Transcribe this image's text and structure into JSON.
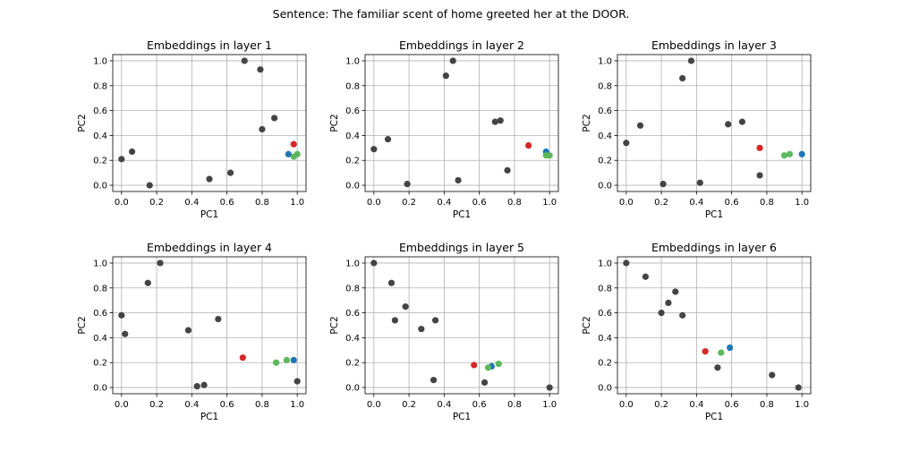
{
  "suptitle": "Sentence: The familiar scent of home greeted her at the DOOR.",
  "colors": {
    "gray": "#444444",
    "red": "#d62728",
    "blue": "#1f77b4",
    "green": "#5cb85c"
  },
  "chart_data": [
    {
      "type": "scatter",
      "title": "Embeddings in layer 1",
      "xlabel": "PC1",
      "ylabel": "PC2",
      "xlim": [
        -0.05,
        1.05
      ],
      "ylim": [
        -0.05,
        1.05
      ],
      "xticks": [
        "0.0",
        "0.2",
        "0.4",
        "0.6",
        "0.8",
        "1.0"
      ],
      "yticks": [
        "0.0",
        "0.2",
        "0.4",
        "0.6",
        "0.8",
        "1.0"
      ],
      "grid": true,
      "points": [
        {
          "x": 0.0,
          "y": 0.21,
          "color": "gray"
        },
        {
          "x": 0.06,
          "y": 0.27,
          "color": "gray"
        },
        {
          "x": 0.16,
          "y": 0.0,
          "color": "gray"
        },
        {
          "x": 0.5,
          "y": 0.05,
          "color": "gray"
        },
        {
          "x": 0.62,
          "y": 0.1,
          "color": "gray"
        },
        {
          "x": 0.7,
          "y": 1.0,
          "color": "gray"
        },
        {
          "x": 0.79,
          "y": 0.93,
          "color": "gray"
        },
        {
          "x": 0.8,
          "y": 0.45,
          "color": "gray"
        },
        {
          "x": 0.87,
          "y": 0.54,
          "color": "gray"
        },
        {
          "x": 0.98,
          "y": 0.33,
          "color": "red"
        },
        {
          "x": 0.95,
          "y": 0.25,
          "color": "blue"
        },
        {
          "x": 0.98,
          "y": 0.23,
          "color": "green"
        },
        {
          "x": 1.0,
          "y": 0.25,
          "color": "green"
        }
      ]
    },
    {
      "type": "scatter",
      "title": "Embeddings in layer 2",
      "xlabel": "PC1",
      "ylabel": "PC2",
      "xlim": [
        -0.05,
        1.05
      ],
      "ylim": [
        -0.05,
        1.05
      ],
      "xticks": [
        "0.0",
        "0.2",
        "0.4",
        "0.6",
        "0.8",
        "1.0"
      ],
      "yticks": [
        "0.0",
        "0.2",
        "0.4",
        "0.6",
        "0.8",
        "1.0"
      ],
      "grid": true,
      "points": [
        {
          "x": 0.0,
          "y": 0.29,
          "color": "gray"
        },
        {
          "x": 0.08,
          "y": 0.37,
          "color": "gray"
        },
        {
          "x": 0.19,
          "y": 0.01,
          "color": "gray"
        },
        {
          "x": 0.41,
          "y": 0.88,
          "color": "gray"
        },
        {
          "x": 0.45,
          "y": 1.0,
          "color": "gray"
        },
        {
          "x": 0.48,
          "y": 0.04,
          "color": "gray"
        },
        {
          "x": 0.69,
          "y": 0.51,
          "color": "gray"
        },
        {
          "x": 0.72,
          "y": 0.52,
          "color": "gray"
        },
        {
          "x": 0.76,
          "y": 0.12,
          "color": "gray"
        },
        {
          "x": 0.88,
          "y": 0.32,
          "color": "red"
        },
        {
          "x": 0.98,
          "y": 0.27,
          "color": "blue"
        },
        {
          "x": 0.98,
          "y": 0.24,
          "color": "green"
        },
        {
          "x": 1.0,
          "y": 0.24,
          "color": "green"
        }
      ]
    },
    {
      "type": "scatter",
      "title": "Embeddings in layer 3",
      "xlabel": "PC1",
      "ylabel": "PC2",
      "xlim": [
        -0.05,
        1.05
      ],
      "ylim": [
        -0.05,
        1.05
      ],
      "xticks": [
        "0.0",
        "0.2",
        "0.4",
        "0.6",
        "0.8",
        "1.0"
      ],
      "yticks": [
        "0.0",
        "0.2",
        "0.4",
        "0.6",
        "0.8",
        "1.0"
      ],
      "grid": true,
      "points": [
        {
          "x": 0.0,
          "y": 0.34,
          "color": "gray"
        },
        {
          "x": 0.08,
          "y": 0.48,
          "color": "gray"
        },
        {
          "x": 0.21,
          "y": 0.01,
          "color": "gray"
        },
        {
          "x": 0.32,
          "y": 0.86,
          "color": "gray"
        },
        {
          "x": 0.37,
          "y": 1.0,
          "color": "gray"
        },
        {
          "x": 0.42,
          "y": 0.02,
          "color": "gray"
        },
        {
          "x": 0.58,
          "y": 0.49,
          "color": "gray"
        },
        {
          "x": 0.66,
          "y": 0.51,
          "color": "gray"
        },
        {
          "x": 0.76,
          "y": 0.08,
          "color": "gray"
        },
        {
          "x": 0.76,
          "y": 0.3,
          "color": "red"
        },
        {
          "x": 1.0,
          "y": 0.25,
          "color": "blue"
        },
        {
          "x": 0.9,
          "y": 0.24,
          "color": "green"
        },
        {
          "x": 0.93,
          "y": 0.25,
          "color": "green"
        }
      ]
    },
    {
      "type": "scatter",
      "title": "Embeddings in layer 4",
      "xlabel": "PC1",
      "ylabel": "PC2",
      "xlim": [
        -0.05,
        1.05
      ],
      "ylim": [
        -0.05,
        1.05
      ],
      "xticks": [
        "0.0",
        "0.2",
        "0.4",
        "0.6",
        "0.8",
        "1.0"
      ],
      "yticks": [
        "0.0",
        "0.2",
        "0.4",
        "0.6",
        "0.8",
        "1.0"
      ],
      "grid": true,
      "points": [
        {
          "x": 0.0,
          "y": 0.58,
          "color": "gray"
        },
        {
          "x": 0.02,
          "y": 0.43,
          "color": "gray"
        },
        {
          "x": 0.15,
          "y": 0.84,
          "color": "gray"
        },
        {
          "x": 0.22,
          "y": 1.0,
          "color": "gray"
        },
        {
          "x": 0.38,
          "y": 0.46,
          "color": "gray"
        },
        {
          "x": 0.43,
          "y": 0.01,
          "color": "gray"
        },
        {
          "x": 0.47,
          "y": 0.02,
          "color": "gray"
        },
        {
          "x": 0.55,
          "y": 0.55,
          "color": "gray"
        },
        {
          "x": 1.0,
          "y": 0.05,
          "color": "gray"
        },
        {
          "x": 0.69,
          "y": 0.24,
          "color": "red"
        },
        {
          "x": 0.98,
          "y": 0.22,
          "color": "blue"
        },
        {
          "x": 0.88,
          "y": 0.2,
          "color": "green"
        },
        {
          "x": 0.94,
          "y": 0.22,
          "color": "green"
        }
      ]
    },
    {
      "type": "scatter",
      "title": "Embeddings in layer 5",
      "xlabel": "PC1",
      "ylabel": "PC2",
      "xlim": [
        -0.05,
        1.05
      ],
      "ylim": [
        -0.05,
        1.05
      ],
      "xticks": [
        "0.0",
        "0.2",
        "0.4",
        "0.6",
        "0.8",
        "1.0"
      ],
      "yticks": [
        "0.0",
        "0.2",
        "0.4",
        "0.6",
        "0.8",
        "1.0"
      ],
      "grid": true,
      "points": [
        {
          "x": 0.0,
          "y": 1.0,
          "color": "gray"
        },
        {
          "x": 0.1,
          "y": 0.84,
          "color": "gray"
        },
        {
          "x": 0.12,
          "y": 0.54,
          "color": "gray"
        },
        {
          "x": 0.18,
          "y": 0.65,
          "color": "gray"
        },
        {
          "x": 0.27,
          "y": 0.47,
          "color": "gray"
        },
        {
          "x": 0.34,
          "y": 0.06,
          "color": "gray"
        },
        {
          "x": 0.35,
          "y": 0.54,
          "color": "gray"
        },
        {
          "x": 0.63,
          "y": 0.04,
          "color": "gray"
        },
        {
          "x": 1.0,
          "y": 0.0,
          "color": "gray"
        },
        {
          "x": 0.57,
          "y": 0.18,
          "color": "red"
        },
        {
          "x": 0.67,
          "y": 0.17,
          "color": "blue"
        },
        {
          "x": 0.65,
          "y": 0.16,
          "color": "green"
        },
        {
          "x": 0.71,
          "y": 0.19,
          "color": "green"
        }
      ]
    },
    {
      "type": "scatter",
      "title": "Embeddings in layer 6",
      "xlabel": "PC1",
      "ylabel": "PC2",
      "xlim": [
        -0.05,
        1.05
      ],
      "ylim": [
        -0.05,
        1.05
      ],
      "xticks": [
        "0.0",
        "0.2",
        "0.4",
        "0.6",
        "0.8",
        "1.0"
      ],
      "yticks": [
        "0.0",
        "0.2",
        "0.4",
        "0.6",
        "0.8",
        "1.0"
      ],
      "grid": true,
      "points": [
        {
          "x": 0.0,
          "y": 1.0,
          "color": "gray"
        },
        {
          "x": 0.11,
          "y": 0.89,
          "color": "gray"
        },
        {
          "x": 0.2,
          "y": 0.6,
          "color": "gray"
        },
        {
          "x": 0.24,
          "y": 0.68,
          "color": "gray"
        },
        {
          "x": 0.28,
          "y": 0.77,
          "color": "gray"
        },
        {
          "x": 0.32,
          "y": 0.58,
          "color": "gray"
        },
        {
          "x": 0.52,
          "y": 0.16,
          "color": "gray"
        },
        {
          "x": 0.83,
          "y": 0.1,
          "color": "gray"
        },
        {
          "x": 0.98,
          "y": 0.0,
          "color": "gray"
        },
        {
          "x": 0.45,
          "y": 0.29,
          "color": "red"
        },
        {
          "x": 0.59,
          "y": 0.32,
          "color": "blue"
        },
        {
          "x": 0.54,
          "y": 0.28,
          "color": "green"
        }
      ]
    }
  ]
}
